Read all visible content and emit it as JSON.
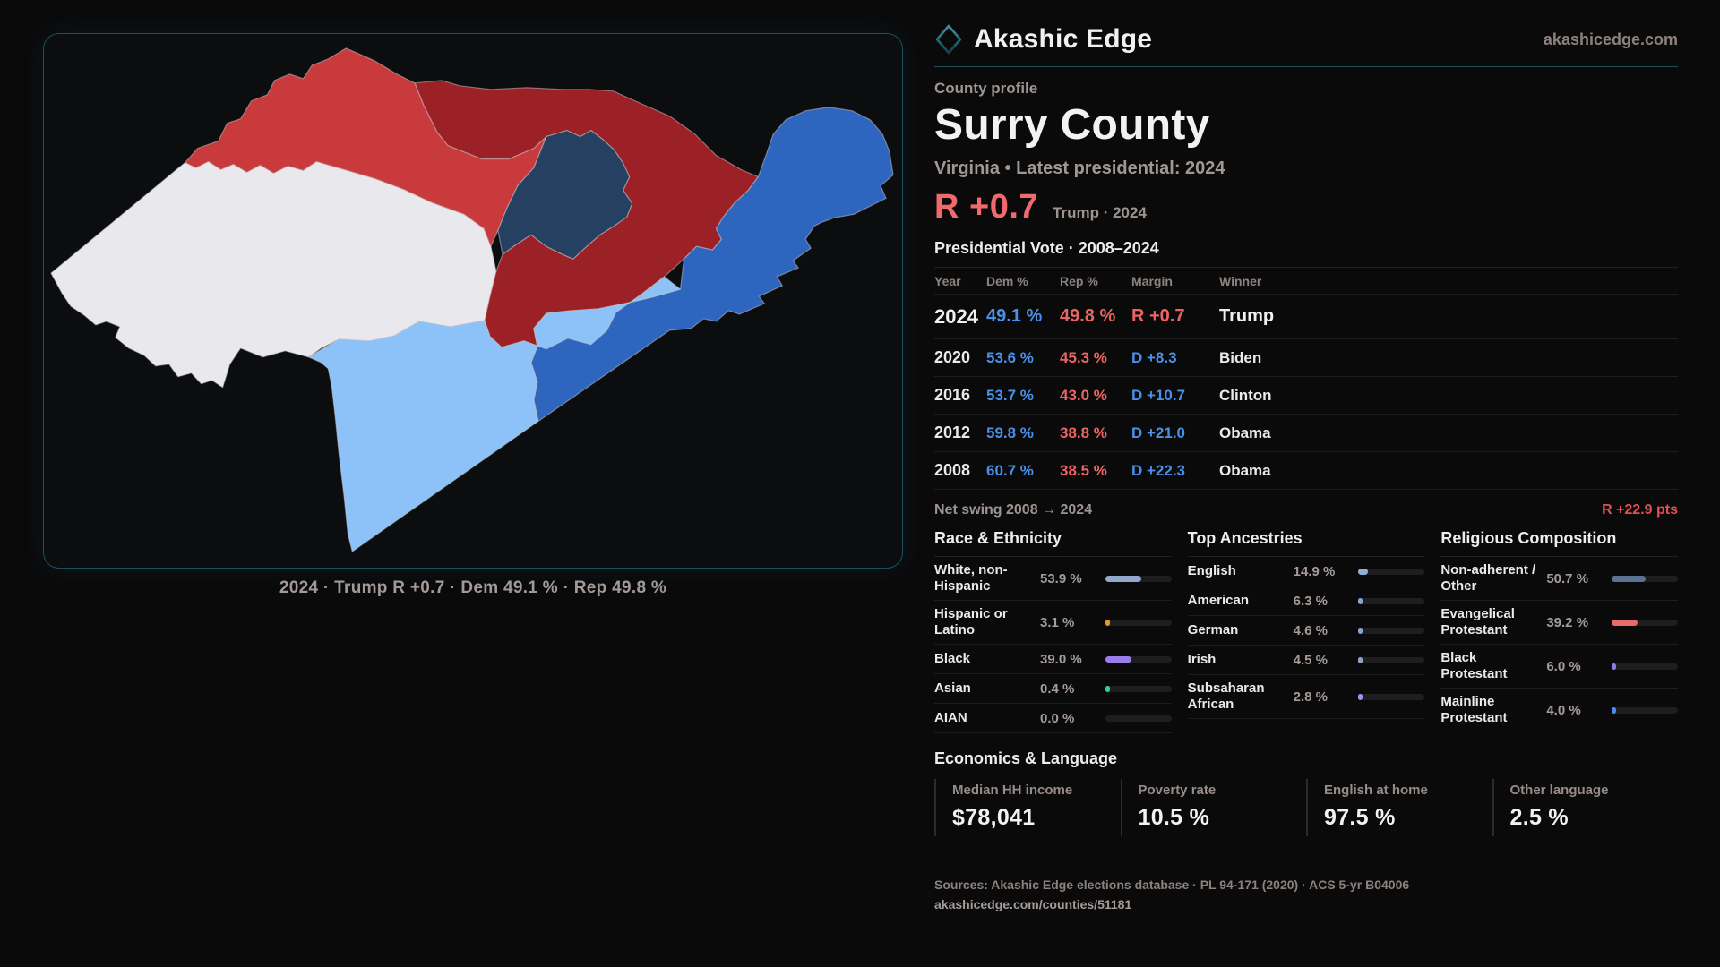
{
  "brand": {
    "name": "Akashic Edge",
    "domain": "akashicedge.com",
    "logo_icon": "diamond-icon"
  },
  "page": {
    "kicker": "County profile",
    "title": "Surry County",
    "subtitle": "Virginia • Latest presidential: 2024"
  },
  "headline": {
    "margin": "R +0.7",
    "note": "Trump · 2024",
    "margin_color": "#f06a6c"
  },
  "colors": {
    "dem": "#4a90e8",
    "rep": "#ea6464",
    "swing": "#e14f52"
  },
  "vote_table": {
    "title": "Presidential Vote · 2008–2024",
    "headers": [
      "Year",
      "Dem %",
      "Rep %",
      "Margin",
      "Winner"
    ],
    "rows": [
      {
        "year": "2024",
        "dem": "49.1 %",
        "rep": "49.8 %",
        "margin": "R +0.7",
        "margin_color": "#ea6464",
        "winner": "Trump"
      },
      {
        "year": "2020",
        "dem": "53.6 %",
        "rep": "45.3 %",
        "margin": "D +8.3",
        "margin_color": "#4a90e8",
        "winner": "Biden"
      },
      {
        "year": "2016",
        "dem": "53.7 %",
        "rep": "43.0 %",
        "margin": "D +10.7",
        "margin_color": "#4a90e8",
        "winner": "Clinton"
      },
      {
        "year": "2012",
        "dem": "59.8 %",
        "rep": "38.8 %",
        "margin": "D +21.0",
        "margin_color": "#4a90e8",
        "winner": "Obama"
      },
      {
        "year": "2008",
        "dem": "60.7 %",
        "rep": "38.5 %",
        "margin": "D +22.3",
        "margin_color": "#4a90e8",
        "winner": "Obama"
      }
    ],
    "net_swing_label": "Net swing 2008 → 2024",
    "net_swing_value": "R +22.9 pts"
  },
  "chart_data": [
    {
      "type": "bar",
      "title": "Race & Ethnicity",
      "categories": [
        "White, non-Hispanic",
        "Hispanic or Latino",
        "Black",
        "Asian",
        "AIAN"
      ],
      "values": [
        53.9,
        3.1,
        39.0,
        0.4,
        0.0
      ],
      "unit": "%"
    },
    {
      "type": "bar",
      "title": "Top Ancestries",
      "categories": [
        "English",
        "American",
        "German",
        "Irish",
        "Subsaharan African"
      ],
      "values": [
        14.9,
        6.3,
        4.6,
        4.5,
        2.8
      ],
      "unit": "%"
    },
    {
      "type": "bar",
      "title": "Religious Composition",
      "categories": [
        "Non-adherent / Other",
        "Evangelical Protestant",
        "Black Protestant",
        "Mainline Protestant"
      ],
      "values": [
        50.7,
        39.2,
        6.0,
        4.0
      ],
      "unit": "%"
    }
  ],
  "demographics": {
    "race": {
      "title": "Race & Ethnicity",
      "rows": [
        {
          "label": "White, non-Hispanic",
          "value": "53.9 %",
          "pct": 53.9,
          "color": "#92a7c9"
        },
        {
          "label": "Hispanic or Latino",
          "value": "3.1 %",
          "pct": 3.1,
          "color": "#e39a28"
        },
        {
          "label": "Black",
          "value": "39.0 %",
          "pct": 39.0,
          "color": "#9b7de9"
        },
        {
          "label": "Asian",
          "value": "0.4 %",
          "pct": 0.4,
          "color": "#2fd1a0"
        },
        {
          "label": "AIAN",
          "value": "0.0 %",
          "pct": 0.0,
          "color": "#6f7f96"
        }
      ]
    },
    "ancestries": {
      "title": "Top Ancestries",
      "rows": [
        {
          "label": "English",
          "value": "14.9 %",
          "pct": 14.9,
          "color": "#8fb0d8"
        },
        {
          "label": "American",
          "value": "6.3 %",
          "pct": 6.3,
          "color": "#86a5d3"
        },
        {
          "label": "German",
          "value": "4.6 %",
          "pct": 4.6,
          "color": "#86a5d3"
        },
        {
          "label": "Irish",
          "value": "4.5 %",
          "pct": 4.5,
          "color": "#8fa3c9"
        },
        {
          "label": "Subsaharan African",
          "value": "2.8 %",
          "pct": 2.8,
          "color": "#a98ef2"
        }
      ]
    },
    "religion": {
      "title": "Religious Composition",
      "rows": [
        {
          "label": "Non-adherent / Other",
          "value": "50.7 %",
          "pct": 50.7,
          "color": "#5d7291"
        },
        {
          "label": "Evangelical Protestant",
          "value": "39.2 %",
          "pct": 39.2,
          "color": "#e66b6d"
        },
        {
          "label": "Black Protestant",
          "value": "6.0 %",
          "pct": 6.0,
          "color": "#8d7bf0"
        },
        {
          "label": "Mainline Protestant",
          "value": "4.0 %",
          "pct": 4.0,
          "color": "#4a8df0"
        }
      ]
    }
  },
  "economics": {
    "title": "Economics & Language",
    "stats": [
      {
        "label": "Median HH income",
        "value": "$78,041"
      },
      {
        "label": "Poverty rate",
        "value": "10.5 %"
      },
      {
        "label": "English at home",
        "value": "97.5 %"
      },
      {
        "label": "Other language",
        "value": "2.5 %"
      }
    ]
  },
  "sources": {
    "line1": "Sources: Akashic Edge elections database · PL 94-171 (2020) · ACS 5-yr B04006",
    "line2": "akashicedge.com/counties/51181"
  },
  "map": {
    "caption": "2024 · Trump R +0.7 · Dem 49.1 % · Rep 49.8 %",
    "region_colors": {
      "white_precinct": "#e9e9ed",
      "bright_red_precinct": "#c93a3c",
      "dark_red_precinct": "#9c2126",
      "navy_precinct": "#254060",
      "medium_blue_precinct": "#2e66bf",
      "light_blue_precinct": "#8cc2f7"
    }
  }
}
